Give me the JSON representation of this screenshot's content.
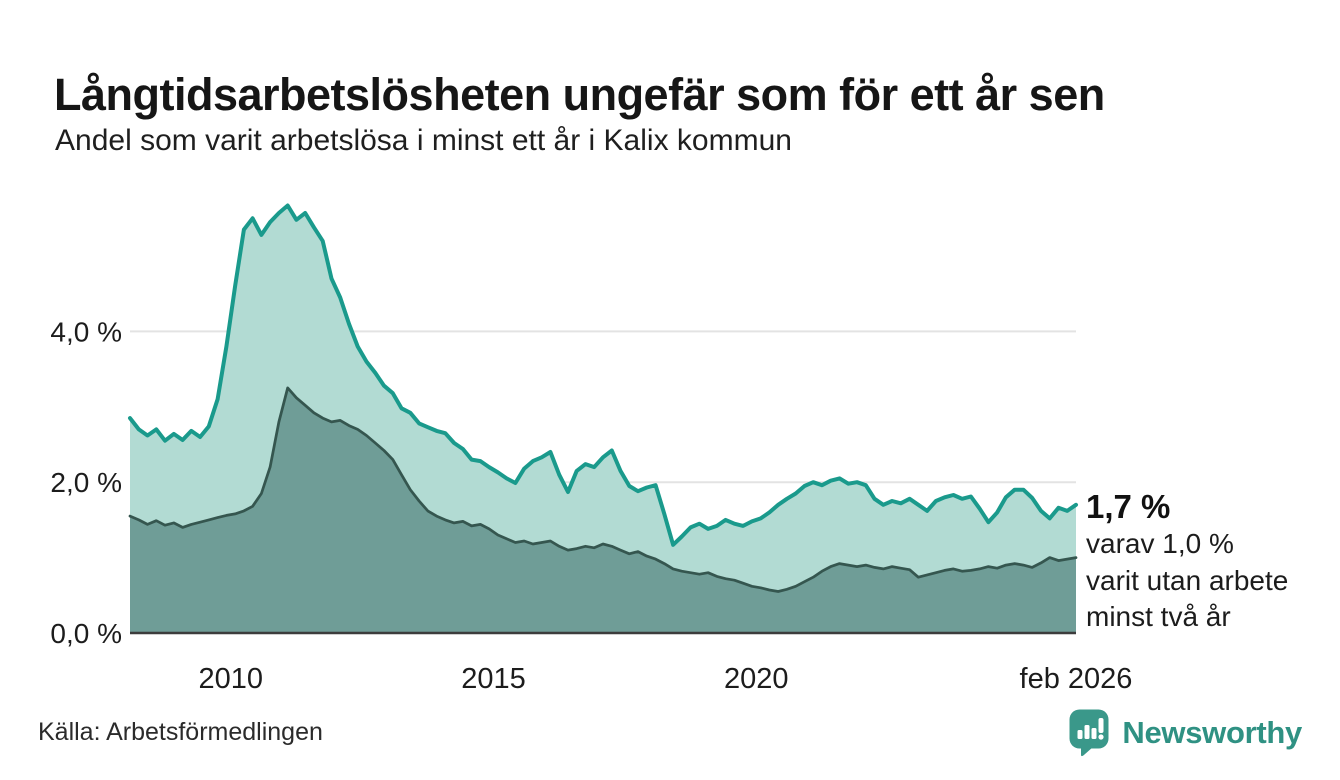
{
  "header": {
    "title": "Långtidsarbetslösheten ungefär som för ett år sen",
    "subtitle": "Andel som varit arbetslösa i minst ett år i Kalix kommun"
  },
  "chart_data": {
    "type": "area",
    "title": "Långtidsarbetslösheten ungefär som för ett år sen",
    "subtitle": "Andel som varit arbetslösa i minst ett år i Kalix kommun",
    "unit": "%",
    "x_unit": "year",
    "x_start": 2008.083,
    "x_end": 2026.083,
    "interval_months": 2,
    "ylim": [
      0,
      5.8
    ],
    "grid": "horizontal",
    "legend": "none",
    "x_ticks": [
      {
        "value": 2010,
        "label": "2010"
      },
      {
        "value": 2015,
        "label": "2015"
      },
      {
        "value": 2020,
        "label": "2020"
      },
      {
        "value": 2026.083,
        "label": "feb 2026"
      }
    ],
    "y_ticks": [
      {
        "value": 0,
        "label": "0,0 %"
      },
      {
        "value": 2,
        "label": "2,0 %"
      },
      {
        "value": 4,
        "label": "4,0 %"
      }
    ],
    "series": [
      {
        "name": "Andel arbetslösa minst ett år",
        "color": "#1a9a8c",
        "fill": "#b2dbd3",
        "line_width": 4,
        "end_value": 1.7,
        "values": [
          2.85,
          2.7,
          2.62,
          2.7,
          2.55,
          2.64,
          2.56,
          2.68,
          2.6,
          2.74,
          3.1,
          3.8,
          4.6,
          5.35,
          5.5,
          5.28,
          5.45,
          5.57,
          5.67,
          5.48,
          5.57,
          5.38,
          5.2,
          4.7,
          4.45,
          4.1,
          3.8,
          3.6,
          3.45,
          3.28,
          3.18,
          2.98,
          2.92,
          2.78,
          2.73,
          2.68,
          2.65,
          2.52,
          2.44,
          2.3,
          2.28,
          2.2,
          2.13,
          2.05,
          1.99,
          2.18,
          2.28,
          2.33,
          2.4,
          2.1,
          1.87,
          2.15,
          2.24,
          2.2,
          2.33,
          2.42,
          2.15,
          1.95,
          1.88,
          1.93,
          1.96,
          1.58,
          1.17,
          1.28,
          1.4,
          1.45,
          1.38,
          1.42,
          1.5,
          1.45,
          1.42,
          1.48,
          1.52,
          1.6,
          1.7,
          1.78,
          1.85,
          1.95,
          2.0,
          1.96,
          2.02,
          2.05,
          1.98,
          2.0,
          1.96,
          1.78,
          1.7,
          1.75,
          1.72,
          1.78,
          1.7,
          1.62,
          1.75,
          1.8,
          1.83,
          1.78,
          1.81,
          1.65,
          1.47,
          1.6,
          1.8,
          1.9,
          1.9,
          1.79,
          1.62,
          1.52,
          1.66,
          1.62,
          1.7
        ]
      },
      {
        "name": "Varav utan arbete minst två år",
        "color": "#35564f",
        "fill": "#6f9d97",
        "line_width": 2.75,
        "end_value": 1.0,
        "values": [
          1.55,
          1.5,
          1.44,
          1.49,
          1.43,
          1.46,
          1.4,
          1.44,
          1.47,
          1.5,
          1.53,
          1.56,
          1.58,
          1.62,
          1.68,
          1.85,
          2.2,
          2.8,
          3.25,
          3.12,
          3.02,
          2.92,
          2.85,
          2.8,
          2.82,
          2.75,
          2.7,
          2.62,
          2.52,
          2.42,
          2.3,
          2.1,
          1.9,
          1.75,
          1.62,
          1.55,
          1.5,
          1.46,
          1.48,
          1.42,
          1.44,
          1.38,
          1.3,
          1.25,
          1.2,
          1.22,
          1.18,
          1.2,
          1.22,
          1.15,
          1.1,
          1.12,
          1.15,
          1.13,
          1.18,
          1.15,
          1.1,
          1.05,
          1.08,
          1.02,
          0.98,
          0.92,
          0.85,
          0.82,
          0.8,
          0.78,
          0.8,
          0.75,
          0.72,
          0.7,
          0.66,
          0.62,
          0.6,
          0.57,
          0.55,
          0.58,
          0.62,
          0.68,
          0.74,
          0.82,
          0.88,
          0.92,
          0.9,
          0.88,
          0.9,
          0.87,
          0.85,
          0.88,
          0.86,
          0.84,
          0.74,
          0.77,
          0.8,
          0.83,
          0.85,
          0.82,
          0.83,
          0.85,
          0.88,
          0.86,
          0.9,
          0.92,
          0.9,
          0.87,
          0.93,
          1.0,
          0.96,
          0.98,
          1.0
        ]
      }
    ],
    "end_annotation": {
      "value_label": "1,7 %",
      "lines": [
        "varav 1,0 %",
        "varit utan arbete",
        "minst två år"
      ]
    }
  },
  "footer": {
    "source": "Källa: Arbetsförmedlingen",
    "brand": "Newsworthy"
  },
  "colors": {
    "accent_teal": "#1a9a8c",
    "light_area": "#b2dbd3",
    "dark_area": "#6f9d97",
    "dark_line": "#35564f",
    "gridline": "#e3e3e3",
    "axis_line": "#3c3c3c",
    "brand_teal": "#2f9183"
  }
}
